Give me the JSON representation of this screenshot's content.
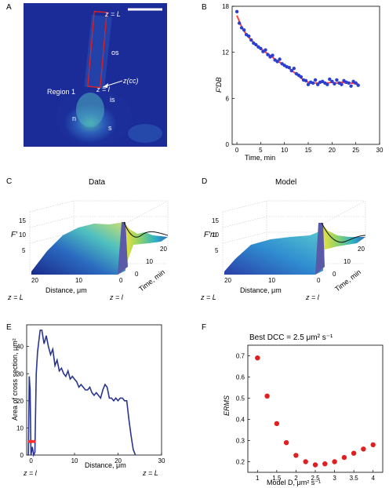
{
  "panels": {
    "A": {
      "letter": "A",
      "labels": {
        "zL": "z = L",
        "os": "os",
        "zcc": "z(cc)",
        "zl": "z = l",
        "region": "Region 1",
        "is": "is",
        "n": "n",
        "s": "s"
      }
    },
    "B": {
      "letter": "B",
      "ylabel": "F′DB",
      "xlabel": "Time, min",
      "xticks": [
        "0",
        "5",
        "10",
        "15",
        "20",
        "25",
        "30"
      ],
      "yticks": [
        "0",
        "6",
        "12",
        "18"
      ]
    },
    "C": {
      "letter": "C",
      "title": "Data",
      "zlabel": "F′",
      "ticks_z": [
        "5",
        "10",
        "15"
      ],
      "ticks_dist": [
        "20",
        "10",
        "0"
      ],
      "ticks_time": [
        "0",
        "10",
        "20"
      ],
      "dist_label": "Distance, μm",
      "time_label": "Time, min",
      "zL": "z = L",
      "zl": "z = l"
    },
    "D": {
      "letter": "D",
      "title": "Model",
      "zlabel": "F′m",
      "ticks_z": [
        "5",
        "10",
        "15"
      ],
      "ticks_dist": [
        "20",
        "10",
        "0"
      ],
      "ticks_time": [
        "0",
        "10",
        "20"
      ],
      "dist_label": "Distance, μm",
      "time_label": "Time, min",
      "zL": "z = L",
      "zl": "z = l"
    },
    "E": {
      "letter": "E",
      "ylabel": "Area of cross section, μm²",
      "xlabel": "Distance, μm",
      "xticks": [
        "0",
        "10",
        "20",
        "30"
      ],
      "yticks": [
        "0",
        "10",
        "20",
        "30",
        "40"
      ],
      "zl": "z = l",
      "zL": "z = L"
    },
    "F": {
      "letter": "F",
      "title": "Best DCC = 2.5 μm² s⁻¹",
      "ylabel": "ERMS",
      "xlabel": "Model D, μm² s⁻¹",
      "xticks": [
        "1",
        "1.5",
        "2",
        "2.5",
        "3",
        "3.5",
        "4"
      ],
      "yticks": [
        "0.2",
        "0.3",
        "0.4",
        "0.5",
        "0.6",
        "0.7"
      ]
    }
  },
  "chart_data": [
    {
      "panel": "B",
      "type": "scatter",
      "xlabel": "Time, min",
      "ylabel": "F′DB",
      "xlim": [
        -1,
        30
      ],
      "ylim": [
        0,
        18
      ],
      "series": [
        {
          "color": "#2b3fd0",
          "x": [
            0,
            0.5,
            1,
            1.5,
            2,
            2.5,
            3,
            3.5,
            4,
            4.5,
            5,
            5.5,
            6,
            6.5,
            7,
            7.5,
            8,
            8.5,
            9,
            9.5,
            10,
            10.5,
            11,
            11.5,
            12,
            12.5,
            13,
            13.5,
            14,
            14.5,
            15,
            15.5,
            16,
            16.5,
            17,
            17.5,
            18,
            18.5,
            19,
            19.5,
            20,
            20.5,
            21,
            21.5,
            22,
            22.5,
            23,
            23.5,
            24,
            24.5,
            25,
            25.5
          ],
          "y": [
            17.3,
            15.8,
            15.2,
            14.9,
            14.3,
            14.1,
            13.6,
            13.2,
            13.0,
            12.7,
            12.5,
            12.1,
            12.3,
            11.7,
            11.4,
            11.6,
            11.0,
            10.8,
            11.1,
            10.5,
            10.3,
            10.1,
            10.0,
            9.6,
            9.9,
            9.2,
            9.0,
            8.8,
            8.4,
            8.3,
            7.8,
            8.1,
            8.0,
            8.4,
            7.8,
            8.1,
            8.2,
            8.0,
            7.8,
            8.5,
            8.2,
            7.9,
            8.4,
            8.0,
            7.8,
            8.3,
            8.1,
            8.0,
            7.6,
            8.2,
            8.0,
            7.7
          ]
        },
        {
          "color": "#ff4040",
          "x": [
            0,
            1,
            2,
            3,
            4,
            5,
            6,
            7,
            8,
            9,
            10,
            11,
            12,
            13,
            14,
            15,
            16,
            17,
            18,
            19,
            20,
            21,
            22,
            23,
            24,
            25,
            25.5
          ],
          "y": [
            16.8,
            15.3,
            14.3,
            13.6,
            13.0,
            12.5,
            12.0,
            11.6,
            11.1,
            10.7,
            10.3,
            9.9,
            9.4,
            8.9,
            8.4,
            8.1,
            8.0,
            8.0,
            8.1,
            8.0,
            8.1,
            8.0,
            8.1,
            8.0,
            8.0,
            7.9,
            7.9
          ]
        }
      ]
    },
    {
      "panel": "E",
      "type": "line",
      "xlabel": "Distance, μm",
      "ylabel": "Area of cross section, μm²",
      "xlim": [
        -1,
        30
      ],
      "ylim": [
        0,
        48
      ],
      "series": [
        {
          "color": "#2a3590",
          "x": [
            -0.6,
            -0.4,
            -0.2,
            0,
            0.3,
            0.6,
            0.9,
            1.2,
            1.5,
            1.8,
            2.1,
            2.5,
            3,
            3.5,
            4,
            4.5,
            5,
            5.5,
            6,
            6.5,
            7,
            7.5,
            8,
            8.5,
            9,
            9.5,
            10,
            10.5,
            11,
            11.5,
            12,
            12.5,
            13,
            13.5,
            14,
            14.5,
            15,
            15.5,
            16,
            16.5,
            17,
            17.5,
            18,
            18.5,
            19,
            19.5,
            20,
            20.5,
            21,
            21.5,
            22,
            22.5,
            23,
            23.5,
            24
          ],
          "y": [
            0,
            29,
            24,
            0,
            3,
            0,
            1,
            30,
            38,
            42,
            46,
            46,
            41,
            44,
            40,
            37,
            39,
            33,
            35,
            31,
            32,
            30,
            29,
            31,
            28,
            29,
            28,
            27,
            25,
            26,
            25,
            24,
            24,
            25,
            23,
            22,
            23,
            22,
            21,
            24,
            26,
            25,
            21,
            21,
            20,
            21,
            20,
            21,
            21,
            20,
            20,
            13,
            7,
            2,
            0
          ]
        },
        {
          "color": "#ff3030",
          "x": [
            -0.3,
            0.2,
            0.7
          ],
          "y": [
            5,
            5,
            5
          ]
        }
      ]
    },
    {
      "panel": "F",
      "type": "scatter",
      "title": "Best DCC = 2.5 μm² s⁻¹",
      "xlabel": "Model D, μm² s⁻¹",
      "ylabel": "ERMS",
      "xlim": [
        0.75,
        4.25
      ],
      "ylim": [
        0.15,
        0.75
      ],
      "series": [
        {
          "color": "#e02020",
          "x": [
            1,
            1.25,
            1.5,
            1.75,
            2,
            2.25,
            2.5,
            2.75,
            3,
            3.25,
            3.5,
            3.75,
            4
          ],
          "y": [
            0.69,
            0.51,
            0.38,
            0.29,
            0.23,
            0.2,
            0.185,
            0.19,
            0.2,
            0.22,
            0.24,
            0.26,
            0.28
          ]
        }
      ]
    }
  ]
}
